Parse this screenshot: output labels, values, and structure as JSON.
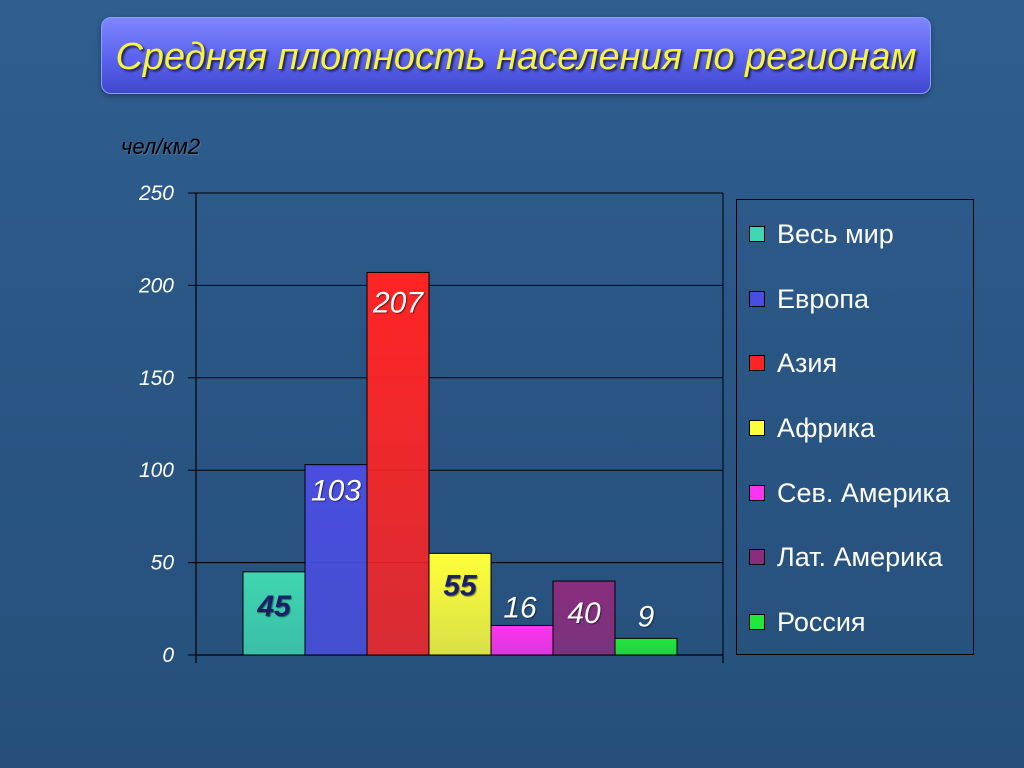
{
  "slide": {
    "title": "Средняя плотность населения по регионам",
    "unit_label": "чел/км2"
  },
  "colors": {
    "label_dark": "#1a1f6b",
    "label_white": "#ffffff"
  },
  "chart_data": {
    "type": "bar",
    "title": "Средняя плотность населения по регионам",
    "ylabel": "чел/км2",
    "xlabel": "",
    "ylim": [
      0,
      250
    ],
    "yticks": [
      0,
      50,
      100,
      150,
      200,
      250
    ],
    "grid": true,
    "legend_position": "right",
    "categories": [
      "Весь мир",
      "Европа",
      "Азия",
      "Африка",
      "Сев. Америка",
      "Лат. Америка",
      "Россия"
    ],
    "values": [
      45,
      103,
      207,
      55,
      16,
      40,
      9
    ],
    "data_labels": [
      "45",
      "103",
      "207",
      "55",
      "16",
      "40",
      "9"
    ],
    "colors": [
      "#3fd6b0",
      "#4a4ee0",
      "#ff2424",
      "#ffff3a",
      "#ff33f0",
      "#8a2d7e",
      "#22e83a"
    ],
    "label_colors": [
      "#1a1f6b",
      "#ffffff",
      "#ffffff",
      "#1a1f6b",
      "#ffffff",
      "#ffffff",
      "#ffffff"
    ]
  }
}
